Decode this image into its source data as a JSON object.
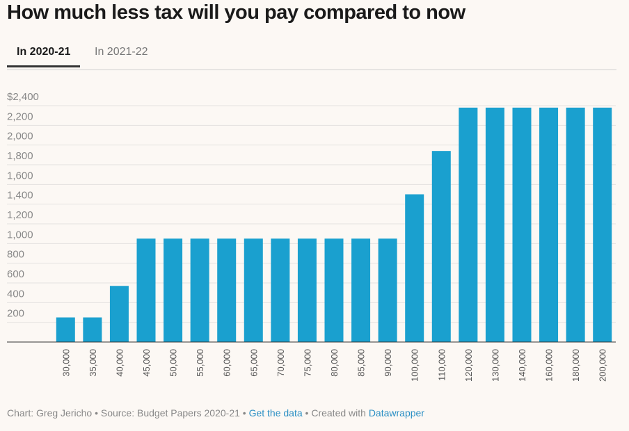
{
  "chart_data": {
    "type": "bar",
    "title": "How much less tax will you pay compared to now",
    "categories": [
      "30,000",
      "35,000",
      "40,000",
      "45,000",
      "50,000",
      "55,000",
      "60,000",
      "65,000",
      "70,000",
      "75,000",
      "80,000",
      "85,000",
      "90,000",
      "100,000",
      "110,000",
      "120,000",
      "130,000",
      "140,000",
      "160,000",
      "180,000",
      "200,000"
    ],
    "values": [
      250,
      250,
      570,
      1050,
      1050,
      1050,
      1050,
      1050,
      1050,
      1050,
      1050,
      1050,
      1050,
      1500,
      1940,
      2380,
      2380,
      2380,
      2380,
      2380,
      2380
    ],
    "color": "#1aa0cf",
    "ylim": [
      0,
      2400
    ],
    "yticks": [
      200,
      {
        "value": 400,
        "label": "400"
      },
      600,
      800,
      {
        "value": 1000,
        "label": "1,000"
      },
      {
        "value": 1200,
        "label": "1,200"
      },
      {
        "value": 1400,
        "label": "1,400"
      },
      {
        "value": 1600,
        "label": "1,600"
      },
      {
        "value": 1800,
        "label": "1,800"
      },
      {
        "value": 2000,
        "label": "2,000"
      },
      {
        "value": 2200,
        "label": "2,200"
      },
      {
        "value": 2400,
        "label": "$2,400"
      }
    ],
    "grid": true
  },
  "tabs": [
    "In 2020-21",
    "In 2021-22"
  ],
  "footer": {
    "credit": "Chart: Greg Jericho",
    "separator": "•",
    "source": "Source: Budget Papers 2020-21",
    "data_link": "Get the data",
    "created_with": "Created with",
    "tool_link": "Datawrapper"
  }
}
